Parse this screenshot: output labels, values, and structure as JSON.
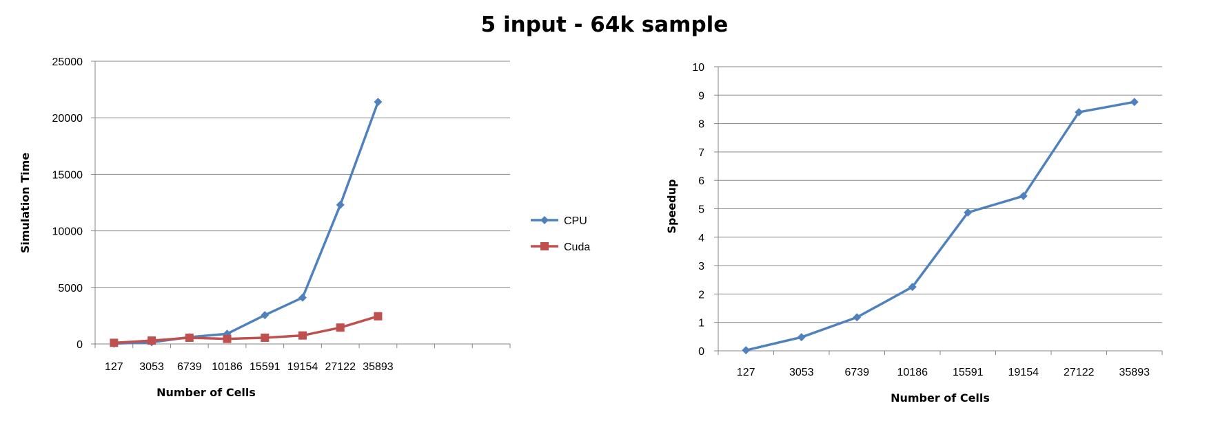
{
  "title": "5 input - 64k sample",
  "chart_data": [
    {
      "type": "line",
      "categories": [
        "127",
        "3053",
        "6739",
        "10186",
        "15591",
        "19154",
        "27122",
        "35893"
      ],
      "series": [
        {
          "name": "CPU",
          "color": "#4f81bd",
          "marker": "diamond",
          "values": [
            30,
            150,
            600,
            900,
            2550,
            4100,
            12300,
            21400
          ]
        },
        {
          "name": "Cuda",
          "color": "#c0504d",
          "marker": "square",
          "values": [
            100,
            300,
            550,
            450,
            550,
            750,
            1450,
            2450
          ]
        }
      ],
      "xlabel": "Number of Cells",
      "ylabel": "Simulation Time",
      "ylim": [
        0,
        25000
      ],
      "yticks": [
        "0",
        "5000",
        "10000",
        "15000",
        "20000",
        "25000"
      ],
      "grid": true,
      "legend": "right"
    },
    {
      "type": "line",
      "categories": [
        "127",
        "3053",
        "6739",
        "10186",
        "15591",
        "19154",
        "27122",
        "35893"
      ],
      "series": [
        {
          "color": "#4f81bd",
          "marker": "diamond",
          "values": [
            0.02,
            0.48,
            1.18,
            2.25,
            4.87,
            5.45,
            8.4,
            8.76
          ]
        }
      ],
      "xlabel": "Number of Cells",
      "ylabel": "Speedup",
      "ylim": [
        0,
        10
      ],
      "yticks": [
        "0",
        "1",
        "2",
        "3",
        "4",
        "5",
        "6",
        "7",
        "8",
        "9",
        "10"
      ],
      "grid": true,
      "legend": "none"
    }
  ]
}
